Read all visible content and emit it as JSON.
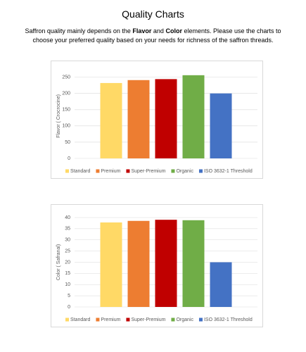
{
  "header": {
    "title": "Quality Charts",
    "intro": [
      "Saffron quality mainly depends on the ",
      "Flavor",
      " and ",
      "Color",
      " elements. Please use the charts to choose your preferred quality based on your needs for richness of the saffron threads."
    ]
  },
  "chart_data": [
    {
      "type": "bar",
      "y_label": "Flavor ( Crocrocine)",
      "categories": [
        "Standard",
        "Premium",
        "Super-Premium",
        "Organic",
        "ISO 3632-1 Threshold"
      ],
      "values": [
        232,
        241,
        244,
        256,
        200
      ],
      "colors": [
        "#ffd966",
        "#ed7d31",
        "#c00000",
        "#70ad47",
        "#4472c4"
      ],
      "ylim": [
        0,
        260
      ],
      "yticks": [
        0,
        50,
        100,
        150,
        200,
        250
      ],
      "grid": true
    },
    {
      "type": "bar",
      "y_label": "Color ( Safranal)",
      "categories": [
        "Standard",
        "Premium",
        "Super-Premium",
        "Organic",
        "ISO 3632-1 Threshold"
      ],
      "values": [
        37.8,
        38.5,
        39,
        38.8,
        20
      ],
      "colors": [
        "#ffd966",
        "#ed7d31",
        "#c00000",
        "#70ad47",
        "#4472c4"
      ],
      "ylim": [
        0,
        40
      ],
      "yticks": [
        0,
        5,
        10,
        15,
        20,
        25,
        30,
        35,
        40
      ],
      "grid": true
    }
  ]
}
